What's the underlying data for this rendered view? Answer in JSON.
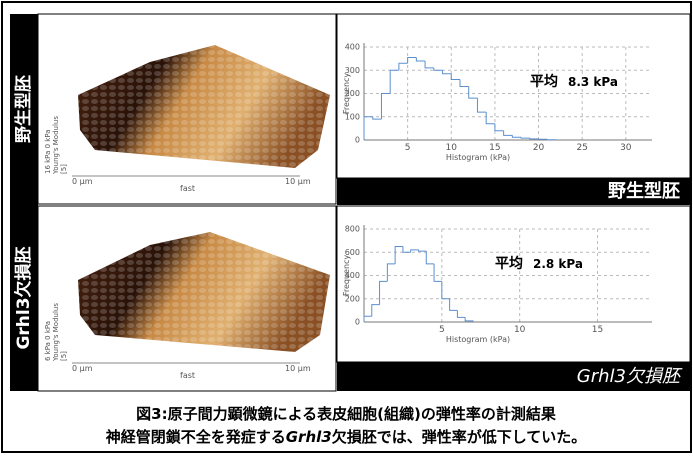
{
  "chart_data": [
    {
      "type": "histogram",
      "y_label": "Frequency",
      "x_label": "Histogram (kPa)",
      "bins": [
        0,
        1,
        2,
        3,
        4,
        5,
        6,
        7,
        8,
        9,
        10,
        11,
        12,
        13,
        14,
        15,
        16,
        17,
        18,
        19,
        20,
        21,
        22
      ],
      "values": [
        100,
        90,
        200,
        300,
        330,
        355,
        340,
        310,
        300,
        285,
        260,
        230,
        180,
        120,
        70,
        40,
        20,
        12,
        8,
        5,
        3,
        1
      ],
      "color": "#5b8fd0",
      "xlim": [
        0,
        33
      ],
      "xticks": [
        5,
        10,
        15,
        20,
        25,
        30
      ],
      "ylim": [
        0,
        400
      ],
      "yticks": [
        0,
        100,
        200,
        300,
        400
      ],
      "grid": true,
      "annotation": {
        "label": "平均",
        "value": "8.3 kPa"
      }
    },
    {
      "type": "histogram",
      "y_label": "Frequency",
      "x_label": "Histogram (kPa)",
      "bins": [
        0,
        0.5,
        1,
        1.5,
        2,
        2.5,
        3,
        3.5,
        4,
        4.5,
        5,
        5.5,
        6,
        6.5,
        7
      ],
      "values": [
        50,
        150,
        350,
        500,
        650,
        600,
        620,
        610,
        500,
        350,
        200,
        100,
        40,
        10
      ],
      "color": "#5b8fd0",
      "xlim": [
        0,
        18.5
      ],
      "xticks": [
        5,
        10,
        15
      ],
      "ylim": [
        0,
        800
      ],
      "yticks": [
        0,
        200,
        400,
        600,
        800
      ],
      "grid": true,
      "annotation": {
        "label": "平均",
        "value": "2.8 kPa"
      }
    }
  ],
  "panels": [
    {
      "row_label": "野生型胚",
      "banner": [
        "野生型胚"
      ],
      "image_labels": {
        "x_start": "0 µm",
        "x_mid": "fast",
        "x_end": "10 µm",
        "scale": [
          "16 kPa  0 kPa",
          "Young's Modulus",
          "[5]"
        ]
      }
    },
    {
      "row_label": "Grhl3欠損胚",
      "banner": [
        "Grhl3",
        "欠損胚"
      ],
      "image_labels": {
        "x_start": "0 µm",
        "x_mid": "fast",
        "x_end": "10 µm",
        "scale": [
          "6 kPa  0 kPa",
          "Young's Modulus",
          "[5]"
        ]
      }
    }
  ],
  "caption": {
    "line1": "図3:原子間力顕微鏡による表皮細胞(組織)の弾性率の計測結果",
    "line2": [
      "神経管閉鎖不全を発症する",
      "Grhl3",
      "欠損胚では、弾性率が低下していた。"
    ]
  }
}
